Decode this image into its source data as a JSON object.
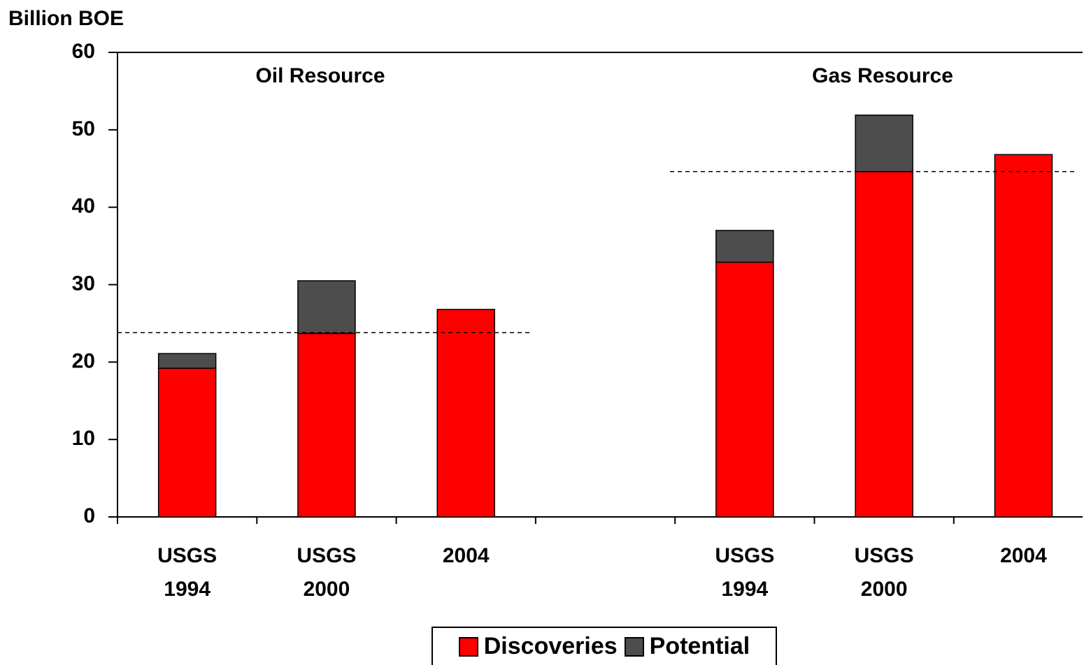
{
  "chart_data": {
    "type": "stacked_bar",
    "y_label": "Billion BOE",
    "categories": [
      "USGS 1994",
      "USGS 2000",
      "2004",
      null,
      "USGS 1994",
      "USGS 2000",
      "2004"
    ],
    "series": [
      {
        "name": "Discoveries",
        "color": "#ff0000",
        "values": [
          19.2,
          23.7,
          26.8,
          null,
          32.9,
          44.6,
          46.8
        ]
      },
      {
        "name": "Potential",
        "color": "#4d4d4d",
        "values": [
          1.9,
          6.8,
          null,
          null,
          4.1,
          7.3,
          null
        ]
      }
    ],
    "annotations": [
      "Oil Resource",
      "Gas Resource"
    ],
    "reference_lines": [
      23.8,
      44.6
    ],
    "ylim": [
      0,
      60
    ],
    "yticks": [
      0,
      10,
      20,
      30,
      40,
      50,
      60
    ],
    "legend": "bottom"
  }
}
